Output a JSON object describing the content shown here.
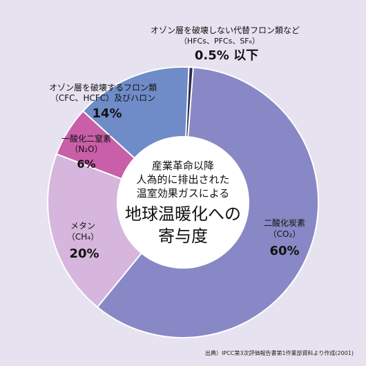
{
  "chart_data": {
    "type": "pie",
    "title_lines": [
      "産業革命以降",
      "人為的に排出された",
      "温室効果ガスによる"
    ],
    "title_big_lines": [
      "地球温暖化への",
      "寄与度"
    ],
    "slices": [
      {
        "name": "二酸化炭素",
        "formula": "（CO₂）",
        "value": 60,
        "value_label": "60%",
        "color": "#8888c6"
      },
      {
        "name": "メタン",
        "formula": "（CH₄）",
        "value": 20,
        "value_label": "20%",
        "color": "#d6b6dc"
      },
      {
        "name": "一酸化二窒素",
        "formula": "（N₂O）",
        "value": 6,
        "value_label": "6%",
        "color": "#c85fa8"
      },
      {
        "name": "オゾン層を破壊するフロン類",
        "formula": "（CFC、HCFC）及びハロン",
        "value": 14,
        "value_label": "14%",
        "color": "#6f8cc8"
      },
      {
        "name": "オゾン層を破壊しない代替フロン類など",
        "formula": "（HFCs、PFCs、SF₆）",
        "value": 0.5,
        "value_label": "0.5% 以下",
        "color": "#2b2850"
      }
    ],
    "source": "出典）IPCC第3次評価報告書第1作業部資料より作成(2001)"
  },
  "colors": {
    "background": "#e7e2f0",
    "text": "#111111",
    "center": "#ffffff"
  }
}
